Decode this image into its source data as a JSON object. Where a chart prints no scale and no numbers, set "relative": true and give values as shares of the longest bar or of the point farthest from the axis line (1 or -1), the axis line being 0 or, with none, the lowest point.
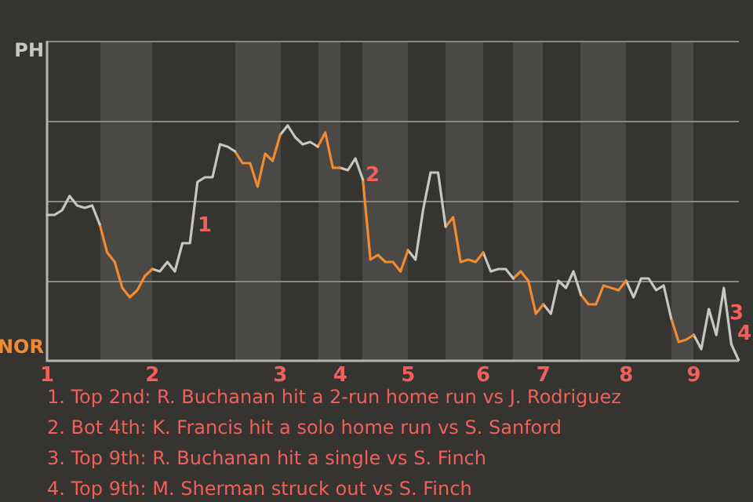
{
  "chart_data": {
    "type": "line",
    "relative": true,
    "categories": [
      "1",
      null,
      null,
      null,
      null,
      null,
      null,
      null,
      null,
      null,
      null,
      null,
      null,
      null,
      "2",
      null,
      null,
      null,
      null,
      null,
      null,
      null,
      null,
      null,
      null,
      null,
      null,
      null,
      null,
      null,
      null,
      "3",
      null,
      null,
      null,
      null,
      null,
      null,
      null,
      "4",
      null,
      null,
      null,
      null,
      null,
      null,
      null,
      null,
      "5",
      null,
      null,
      null,
      null,
      null,
      null,
      null,
      null,
      null,
      "6",
      null,
      null,
      null,
      null,
      null,
      null,
      null,
      "7",
      null,
      null,
      null,
      null,
      null,
      null,
      null,
      null,
      null,
      null,
      "8",
      null,
      null,
      null,
      null,
      null,
      null,
      null,
      null,
      "9",
      null,
      null,
      null,
      null,
      null,
      null
    ],
    "series": [
      {
        "color": "#c8c6c2",
        "values": [
          0.62,
          0.62,
          0.64,
          0.7,
          0.66,
          0.65,
          0.66,
          0.58,
          null,
          null,
          null,
          null,
          null,
          null,
          null,
          null,
          null,
          null,
          null,
          null,
          null,
          null,
          null,
          null,
          null,
          null,
          null,
          null,
          null,
          null,
          null,
          null,
          null,
          null,
          null,
          null,
          null,
          null,
          null,
          null,
          null,
          null,
          null,
          null,
          null,
          null,
          null,
          null,
          null,
          null,
          null,
          null,
          null,
          null,
          null,
          null,
          null,
          null,
          null,
          null,
          null,
          null,
          null,
          null,
          null,
          null,
          null,
          null,
          null,
          null,
          null,
          null,
          null,
          null,
          null,
          null,
          null,
          null,
          null,
          null,
          null,
          null,
          null,
          null,
          null,
          null,
          null,
          null,
          null,
          null,
          null,
          null,
          null
        ]
      },
      {
        "color": "#f28a30",
        "values": [
          null,
          null,
          null,
          null,
          null,
          null,
          null,
          0.58,
          0.46,
          0.42,
          0.31,
          0.27,
          0.3,
          0.36,
          0.39,
          null,
          null,
          null,
          null,
          null,
          null,
          null,
          null,
          null,
          null,
          null,
          null,
          null,
          null,
          null,
          null,
          null,
          null,
          null,
          null,
          null,
          null,
          null,
          null,
          null,
          null,
          null,
          null,
          null,
          null,
          null,
          null,
          null,
          null,
          null,
          null,
          null,
          null,
          null,
          null,
          null,
          null,
          null,
          null,
          null,
          null,
          null,
          null,
          null,
          null,
          null,
          null,
          null,
          null,
          null,
          null,
          null,
          null,
          null,
          null,
          null,
          null,
          null,
          null,
          null,
          null,
          null,
          null,
          null,
          null,
          null,
          null,
          null,
          null,
          null,
          null,
          null,
          null
        ]
      },
      {
        "color": "#c8c6c2",
        "values": [
          null,
          null,
          null,
          null,
          null,
          null,
          null,
          null,
          null,
          null,
          null,
          null,
          null,
          null,
          0.39,
          0.38,
          0.42,
          0.38,
          0.5,
          0.5,
          0.76,
          0.78,
          0.78,
          0.92,
          0.91,
          0.89,
          null,
          null,
          null,
          null,
          null,
          null,
          null,
          null,
          null,
          null,
          null,
          null,
          null,
          null,
          null,
          null,
          null,
          null,
          null,
          null,
          null,
          null,
          null,
          null,
          null,
          null,
          null,
          null,
          null,
          null,
          null,
          null,
          null,
          null,
          null,
          null,
          null,
          null,
          null,
          null,
          null,
          null,
          null,
          null,
          null,
          null,
          null,
          null,
          null,
          null,
          null,
          null,
          null,
          null,
          null,
          null,
          null,
          null,
          null,
          null,
          null,
          null,
          null,
          null,
          null,
          null,
          null
        ]
      },
      {
        "color": "#f28a30",
        "values": [
          null,
          null,
          null,
          null,
          null,
          null,
          null,
          null,
          null,
          null,
          null,
          null,
          null,
          null,
          null,
          null,
          null,
          null,
          null,
          null,
          null,
          null,
          null,
          null,
          null,
          0.89,
          0.84,
          0.84,
          0.74,
          0.88,
          0.85,
          0.96,
          null,
          null,
          null,
          null,
          null,
          null,
          null,
          null,
          null,
          null,
          null,
          null,
          null,
          null,
          null,
          null,
          null,
          null,
          null,
          null,
          null,
          null,
          null,
          null,
          null,
          null,
          null,
          null,
          null,
          null,
          null,
          null,
          null,
          null,
          null,
          null,
          null,
          null,
          null,
          null,
          null,
          null,
          null,
          null,
          null,
          null,
          null,
          null,
          null,
          null,
          null,
          null,
          null,
          null,
          null,
          null,
          null,
          null,
          null,
          null,
          null
        ]
      },
      {
        "color": "#c8c6c2",
        "values": [
          null,
          null,
          null,
          null,
          null,
          null,
          null,
          null,
          null,
          null,
          null,
          null,
          null,
          null,
          null,
          null,
          null,
          null,
          null,
          null,
          null,
          null,
          null,
          null,
          null,
          null,
          null,
          null,
          null,
          null,
          null,
          0.96,
          1,
          0.95,
          0.92,
          0.93,
          0.91,
          null,
          null,
          null,
          null,
          null,
          null,
          null,
          null,
          null,
          null,
          null,
          null,
          null,
          null,
          null,
          null,
          null,
          null,
          null,
          null,
          null,
          null,
          null,
          null,
          null,
          null,
          null,
          null,
          null,
          null,
          null,
          null,
          null,
          null,
          null,
          null,
          null,
          null,
          null,
          null,
          null,
          null,
          null,
          null,
          null,
          null,
          null,
          null,
          null,
          null,
          null,
          null,
          null,
          null,
          null,
          null
        ]
      },
      {
        "color": "#f28a30",
        "values": [
          null,
          null,
          null,
          null,
          null,
          null,
          null,
          null,
          null,
          null,
          null,
          null,
          null,
          null,
          null,
          null,
          null,
          null,
          null,
          null,
          null,
          null,
          null,
          null,
          null,
          null,
          null,
          null,
          null,
          null,
          null,
          null,
          null,
          null,
          null,
          null,
          0.91,
          0.97,
          0.82,
          0.82,
          null,
          null,
          null,
          null,
          null,
          null,
          null,
          null,
          null,
          null,
          null,
          null,
          null,
          null,
          null,
          null,
          null,
          null,
          null,
          null,
          null,
          null,
          null,
          null,
          null,
          null,
          null,
          null,
          null,
          null,
          null,
          null,
          null,
          null,
          null,
          null,
          null,
          null,
          null,
          null,
          null,
          null,
          null,
          null,
          null,
          null,
          null,
          null,
          null,
          null,
          null,
          null,
          null
        ]
      },
      {
        "color": "#c8c6c2",
        "values": [
          null,
          null,
          null,
          null,
          null,
          null,
          null,
          null,
          null,
          null,
          null,
          null,
          null,
          null,
          null,
          null,
          null,
          null,
          null,
          null,
          null,
          null,
          null,
          null,
          null,
          null,
          null,
          null,
          null,
          null,
          null,
          null,
          null,
          null,
          null,
          null,
          null,
          null,
          null,
          0.82,
          0.81,
          0.86,
          0.77,
          null,
          null,
          null,
          null,
          null,
          null,
          null,
          null,
          null,
          null,
          null,
          null,
          null,
          null,
          null,
          null,
          null,
          null,
          null,
          null,
          null,
          null,
          null,
          null,
          null,
          null,
          null,
          null,
          null,
          null,
          null,
          null,
          null,
          null,
          null,
          null,
          null,
          null,
          null,
          null,
          null,
          null,
          null,
          null,
          null,
          null,
          null,
          null,
          null,
          null
        ]
      },
      {
        "color": "#f28a30",
        "values": [
          null,
          null,
          null,
          null,
          null,
          null,
          null,
          null,
          null,
          null,
          null,
          null,
          null,
          null,
          null,
          null,
          null,
          null,
          null,
          null,
          null,
          null,
          null,
          null,
          null,
          null,
          null,
          null,
          null,
          null,
          null,
          null,
          null,
          null,
          null,
          null,
          null,
          null,
          null,
          null,
          null,
          null,
          0.77,
          0.43,
          0.45,
          0.42,
          0.42,
          0.38,
          0.47,
          null,
          null,
          null,
          null,
          null,
          null,
          null,
          null,
          null,
          null,
          null,
          null,
          null,
          null,
          null,
          null,
          null,
          null,
          null,
          null,
          null,
          null,
          null,
          null,
          null,
          null,
          null,
          null,
          null,
          null,
          null,
          null,
          null,
          null,
          null,
          null,
          null,
          null,
          null,
          null,
          null,
          null,
          null,
          null
        ]
      },
      {
        "color": "#c8c6c2",
        "values": [
          null,
          null,
          null,
          null,
          null,
          null,
          null,
          null,
          null,
          null,
          null,
          null,
          null,
          null,
          null,
          null,
          null,
          null,
          null,
          null,
          null,
          null,
          null,
          null,
          null,
          null,
          null,
          null,
          null,
          null,
          null,
          null,
          null,
          null,
          null,
          null,
          null,
          null,
          null,
          null,
          null,
          null,
          null,
          null,
          null,
          null,
          null,
          null,
          0.47,
          0.43,
          0.64,
          0.8,
          0.8,
          0.57,
          null,
          null,
          null,
          null,
          null,
          null,
          null,
          null,
          null,
          null,
          null,
          null,
          null,
          null,
          null,
          null,
          null,
          null,
          null,
          null,
          null,
          null,
          null,
          null,
          null,
          null,
          null,
          null,
          null,
          null,
          null,
          null,
          null,
          null,
          null,
          null,
          null,
          null,
          null
        ]
      },
      {
        "color": "#f28a30",
        "values": [
          null,
          null,
          null,
          null,
          null,
          null,
          null,
          null,
          null,
          null,
          null,
          null,
          null,
          null,
          null,
          null,
          null,
          null,
          null,
          null,
          null,
          null,
          null,
          null,
          null,
          null,
          null,
          null,
          null,
          null,
          null,
          null,
          null,
          null,
          null,
          null,
          null,
          null,
          null,
          null,
          null,
          null,
          null,
          null,
          null,
          null,
          null,
          null,
          null,
          null,
          null,
          null,
          null,
          0.57,
          0.61,
          0.42,
          0.43,
          0.42,
          0.46,
          null,
          null,
          null,
          null,
          null,
          null,
          null,
          null,
          null,
          null,
          null,
          null,
          null,
          null,
          null,
          null,
          null,
          null,
          null,
          null,
          null,
          null,
          null,
          null,
          null,
          null,
          null,
          null,
          null,
          null,
          null,
          null,
          null,
          null
        ]
      },
      {
        "color": "#c8c6c2",
        "values": [
          null,
          null,
          null,
          null,
          null,
          null,
          null,
          null,
          null,
          null,
          null,
          null,
          null,
          null,
          null,
          null,
          null,
          null,
          null,
          null,
          null,
          null,
          null,
          null,
          null,
          null,
          null,
          null,
          null,
          null,
          null,
          null,
          null,
          null,
          null,
          null,
          null,
          null,
          null,
          null,
          null,
          null,
          null,
          null,
          null,
          null,
          null,
          null,
          null,
          null,
          null,
          null,
          null,
          null,
          null,
          null,
          null,
          null,
          0.46,
          0.38,
          0.39,
          0.39,
          0.35,
          null,
          null,
          null,
          null,
          null,
          null,
          null,
          null,
          null,
          null,
          null,
          null,
          null,
          null,
          null,
          null,
          null,
          null,
          null,
          null,
          null,
          null,
          null,
          null,
          null,
          null,
          null,
          null,
          null,
          null
        ]
      },
      {
        "color": "#f28a30",
        "values": [
          null,
          null,
          null,
          null,
          null,
          null,
          null,
          null,
          null,
          null,
          null,
          null,
          null,
          null,
          null,
          null,
          null,
          null,
          null,
          null,
          null,
          null,
          null,
          null,
          null,
          null,
          null,
          null,
          null,
          null,
          null,
          null,
          null,
          null,
          null,
          null,
          null,
          null,
          null,
          null,
          null,
          null,
          null,
          null,
          null,
          null,
          null,
          null,
          null,
          null,
          null,
          null,
          null,
          null,
          null,
          null,
          null,
          null,
          null,
          null,
          null,
          null,
          0.35,
          0.38,
          0.34,
          0.2,
          0.24,
          null,
          null,
          null,
          null,
          null,
          null,
          null,
          null,
          null,
          null,
          null,
          null,
          null,
          null,
          null,
          null,
          null,
          null,
          null,
          null,
          null,
          null,
          null,
          null,
          null,
          null
        ]
      },
      {
        "color": "#c8c6c2",
        "values": [
          null,
          null,
          null,
          null,
          null,
          null,
          null,
          null,
          null,
          null,
          null,
          null,
          null,
          null,
          null,
          null,
          null,
          null,
          null,
          null,
          null,
          null,
          null,
          null,
          null,
          null,
          null,
          null,
          null,
          null,
          null,
          null,
          null,
          null,
          null,
          null,
          null,
          null,
          null,
          null,
          null,
          null,
          null,
          null,
          null,
          null,
          null,
          null,
          null,
          null,
          null,
          null,
          null,
          null,
          null,
          null,
          null,
          null,
          null,
          null,
          null,
          null,
          null,
          null,
          null,
          null,
          0.24,
          0.2,
          0.34,
          0.31,
          0.38,
          0.28,
          null,
          null,
          null,
          null,
          null,
          null,
          null,
          null,
          null,
          null,
          null,
          null,
          null,
          null,
          null,
          null,
          null,
          null,
          null,
          null,
          null
        ]
      },
      {
        "color": "#f28a30",
        "values": [
          null,
          null,
          null,
          null,
          null,
          null,
          null,
          null,
          null,
          null,
          null,
          null,
          null,
          null,
          null,
          null,
          null,
          null,
          null,
          null,
          null,
          null,
          null,
          null,
          null,
          null,
          null,
          null,
          null,
          null,
          null,
          null,
          null,
          null,
          null,
          null,
          null,
          null,
          null,
          null,
          null,
          null,
          null,
          null,
          null,
          null,
          null,
          null,
          null,
          null,
          null,
          null,
          null,
          null,
          null,
          null,
          null,
          null,
          null,
          null,
          null,
          null,
          null,
          null,
          null,
          null,
          null,
          null,
          null,
          null,
          null,
          0.28,
          0.24,
          0.24,
          0.32,
          0.31,
          0.3,
          0.34,
          null,
          null,
          null,
          null,
          null,
          null,
          null,
          null,
          null,
          null,
          null,
          null,
          null,
          null,
          null
        ]
      },
      {
        "color": "#c8c6c2",
        "values": [
          null,
          null,
          null,
          null,
          null,
          null,
          null,
          null,
          null,
          null,
          null,
          null,
          null,
          null,
          null,
          null,
          null,
          null,
          null,
          null,
          null,
          null,
          null,
          null,
          null,
          null,
          null,
          null,
          null,
          null,
          null,
          null,
          null,
          null,
          null,
          null,
          null,
          null,
          null,
          null,
          null,
          null,
          null,
          null,
          null,
          null,
          null,
          null,
          null,
          null,
          null,
          null,
          null,
          null,
          null,
          null,
          null,
          null,
          null,
          null,
          null,
          null,
          null,
          null,
          null,
          null,
          null,
          null,
          null,
          null,
          null,
          null,
          null,
          null,
          null,
          null,
          null,
          0.34,
          0.27,
          0.35,
          0.35,
          0.3,
          0.32,
          0.18,
          null,
          null,
          null,
          null,
          null,
          null,
          null,
          null,
          null
        ]
      },
      {
        "color": "#f28a30",
        "values": [
          null,
          null,
          null,
          null,
          null,
          null,
          null,
          null,
          null,
          null,
          null,
          null,
          null,
          null,
          null,
          null,
          null,
          null,
          null,
          null,
          null,
          null,
          null,
          null,
          null,
          null,
          null,
          null,
          null,
          null,
          null,
          null,
          null,
          null,
          null,
          null,
          null,
          null,
          null,
          null,
          null,
          null,
          null,
          null,
          null,
          null,
          null,
          null,
          null,
          null,
          null,
          null,
          null,
          null,
          null,
          null,
          null,
          null,
          null,
          null,
          null,
          null,
          null,
          null,
          null,
          null,
          null,
          null,
          null,
          null,
          null,
          null,
          null,
          null,
          null,
          null,
          null,
          null,
          null,
          null,
          null,
          null,
          null,
          0.18,
          0.08,
          0.09,
          0.11,
          null,
          null,
          null,
          null,
          null,
          null
        ]
      },
      {
        "color": "#c8c6c2",
        "values": [
          null,
          null,
          null,
          null,
          null,
          null,
          null,
          null,
          null,
          null,
          null,
          null,
          null,
          null,
          null,
          null,
          null,
          null,
          null,
          null,
          null,
          null,
          null,
          null,
          null,
          null,
          null,
          null,
          null,
          null,
          null,
          null,
          null,
          null,
          null,
          null,
          null,
          null,
          null,
          null,
          null,
          null,
          null,
          null,
          null,
          null,
          null,
          null,
          null,
          null,
          null,
          null,
          null,
          null,
          null,
          null,
          null,
          null,
          null,
          null,
          null,
          null,
          null,
          null,
          null,
          null,
          null,
          null,
          null,
          null,
          null,
          null,
          null,
          null,
          null,
          null,
          null,
          null,
          null,
          null,
          null,
          null,
          null,
          null,
          null,
          null,
          0.11,
          0.05,
          0.22,
          0.11,
          0.31,
          0.07,
          0
        ]
      }
    ],
    "ref_lines": [
      {
        "axis": "y",
        "value": 0.34,
        "color": "#8a8884"
      },
      {
        "axis": "y",
        "value": 0.68,
        "color": "#8a8884"
      },
      {
        "axis": "y",
        "value": 1.02,
        "color": "#8a8884"
      }
    ],
    "annotations": [
      "PH",
      "NOR",
      "1",
      "2",
      "3",
      "4",
      "1. Top 2nd: R. Buchanan hit a 2-run home run vs J. Rodriguez",
      "2. Bot 4th: K. Francis hit a solo home run vs S. Sanford",
      "3. Top 9th: R. Buchanan hit a single vs S. Finch",
      "4. Top 9th: M. Sherman struck out vs S. Finch"
    ]
  }
}
